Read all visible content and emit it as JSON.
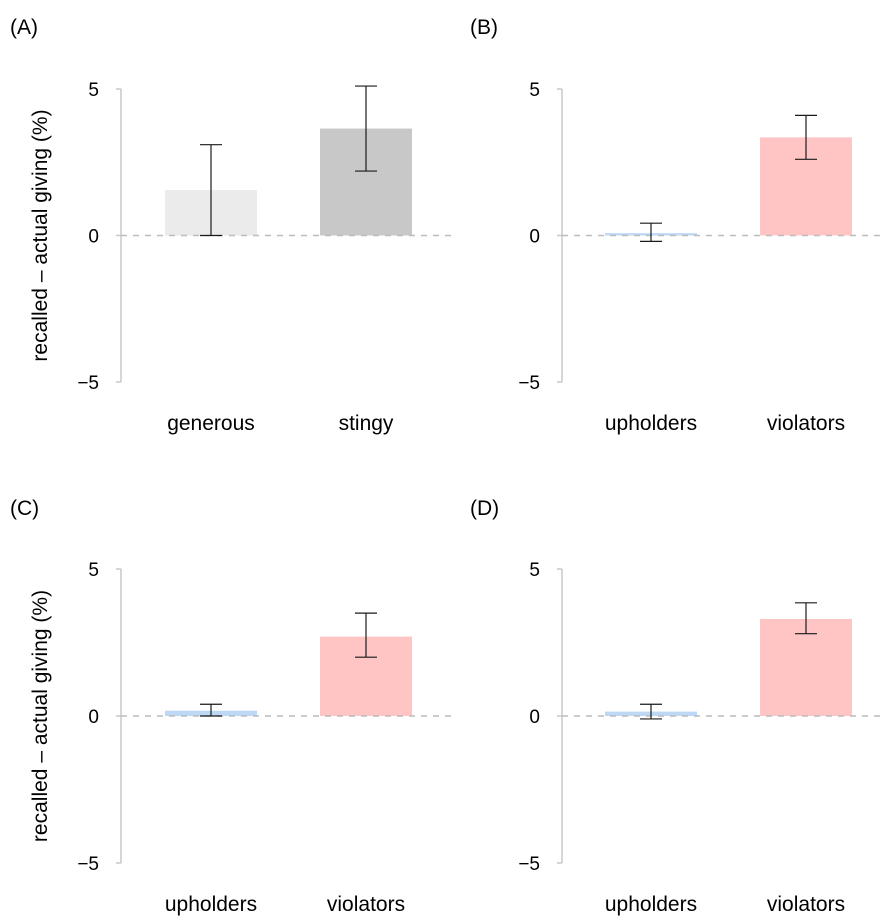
{
  "chart_data": [
    {
      "panel_label": "(A)",
      "type": "bar",
      "ylabel": "recalled – actual giving (%)",
      "ylim": [
        -5,
        5
      ],
      "yticks": [
        "5",
        "0",
        "−5"
      ],
      "yticks_values": [
        5,
        0,
        -5
      ],
      "categories": [
        "generous",
        "stingy"
      ],
      "values": [
        1.55,
        3.65
      ],
      "error_low": [
        0.0,
        2.2
      ],
      "error_high": [
        3.1,
        5.1
      ],
      "colors": [
        "#ebebeb",
        "#c8c8c8"
      ],
      "reference_line": 0,
      "grid": false,
      "legend": "none"
    },
    {
      "panel_label": "(B)",
      "type": "bar",
      "ylabel": "",
      "ylim": [
        -5,
        5
      ],
      "yticks": [
        "5",
        "0",
        "−5"
      ],
      "yticks_values": [
        5,
        0,
        -5
      ],
      "categories": [
        "upholders",
        "violators"
      ],
      "values": [
        0.08,
        3.35
      ],
      "error_low": [
        -0.2,
        2.6
      ],
      "error_high": [
        0.42,
        4.1
      ],
      "colors": [
        "#bcd8f4",
        "#ffc4c4"
      ],
      "reference_line": 0,
      "grid": false,
      "legend": "none"
    },
    {
      "panel_label": "(C)",
      "type": "bar",
      "ylabel": "recalled – actual giving (%)",
      "ylim": [
        -5,
        5
      ],
      "yticks": [
        "5",
        "0",
        "−5"
      ],
      "yticks_values": [
        5,
        0,
        -5
      ],
      "categories": [
        "upholders",
        "violators"
      ],
      "values": [
        0.18,
        2.7
      ],
      "error_low": [
        0.0,
        2.0
      ],
      "error_high": [
        0.4,
        3.5
      ],
      "colors": [
        "#bcd8f4",
        "#ffc4c4"
      ],
      "reference_line": 0,
      "grid": false,
      "legend": "none"
    },
    {
      "panel_label": "(D)",
      "type": "bar",
      "ylabel": "",
      "ylim": [
        -5,
        5
      ],
      "yticks": [
        "5",
        "0",
        "−5"
      ],
      "yticks_values": [
        5,
        0,
        -5
      ],
      "categories": [
        "upholders",
        "violators"
      ],
      "values": [
        0.15,
        3.3
      ],
      "error_low": [
        -0.1,
        2.8
      ],
      "error_high": [
        0.4,
        3.85
      ],
      "colors": [
        "#bcd8f4",
        "#ffc4c4"
      ],
      "reference_line": 0,
      "grid": false,
      "legend": "none"
    }
  ]
}
